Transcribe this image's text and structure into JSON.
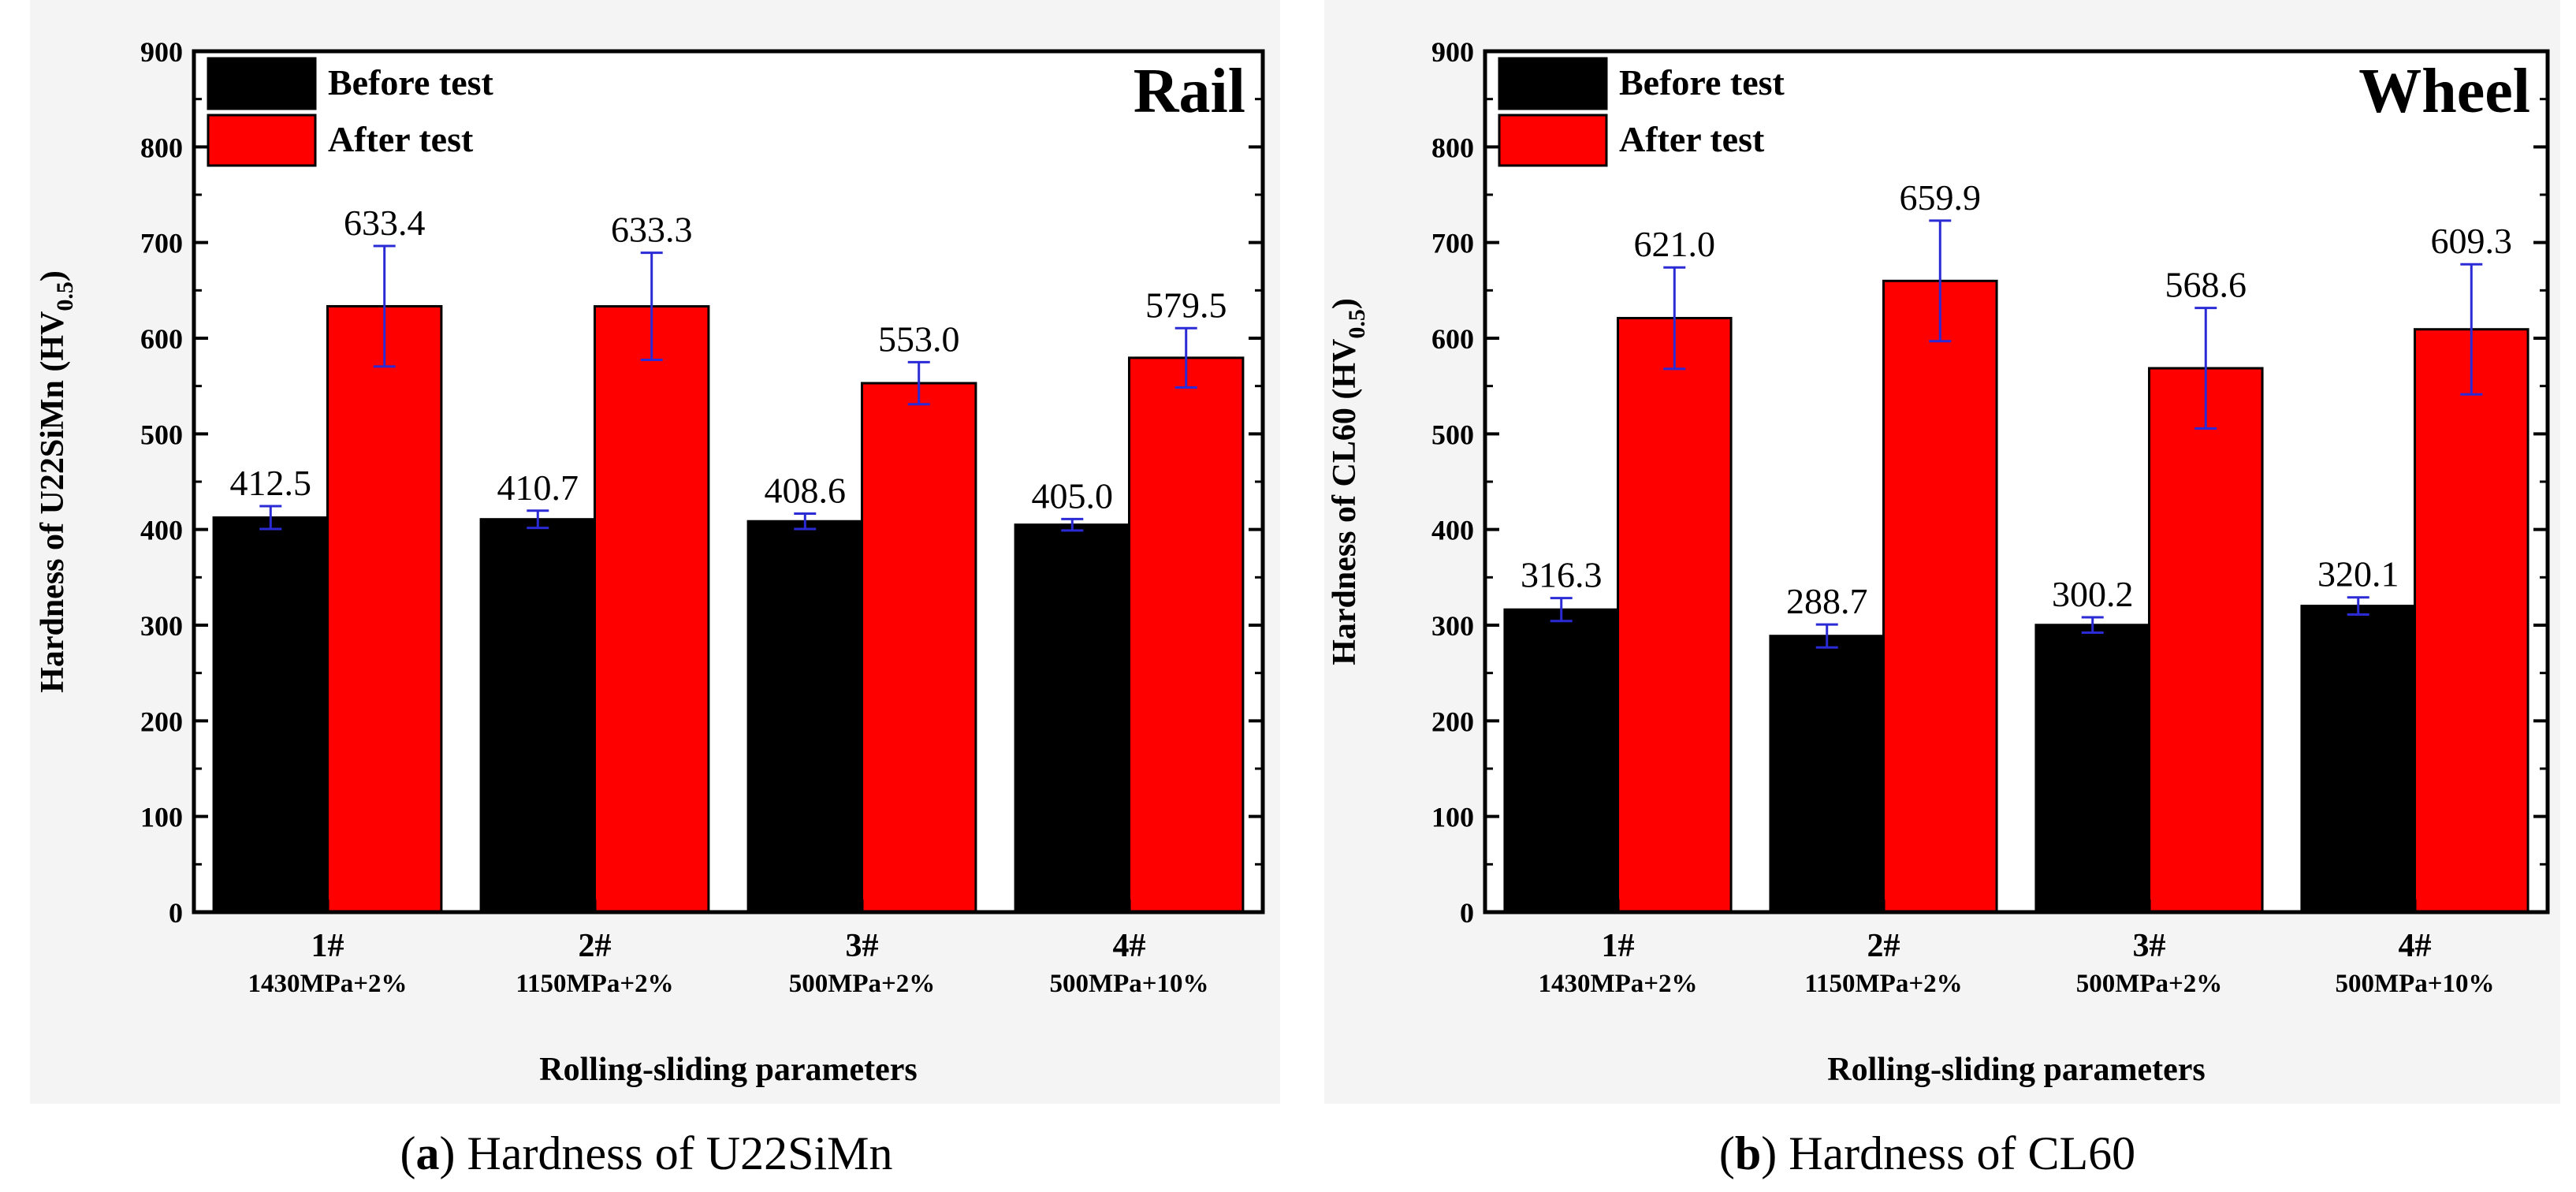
{
  "chart_data": [
    {
      "type": "bar",
      "panel_title": "Rail",
      "caption_letter": "a",
      "caption_text": " Hardness of U22SiMn",
      "ylabel_main": "Hardness of U22SiMn (HV",
      "ylabel_sub": "0.5",
      "ylabel_close": ")",
      "xlabel": "Rolling-sliding parameters",
      "ylim": [
        0,
        900
      ],
      "yticks": [
        0,
        100,
        200,
        300,
        400,
        500,
        600,
        700,
        800,
        900
      ],
      "categories": [
        "1#",
        "2#",
        "3#",
        "4#"
      ],
      "conditions": [
        "1430MPa+2%",
        "1150MPa+2%",
        "500MPa+2%",
        "500MPa+10%"
      ],
      "series": [
        {
          "name": "Before test",
          "color": "#000000",
          "values": [
            412.5,
            410.7,
            408.6,
            405.0
          ],
          "labels": [
            "412.5",
            "410.7",
            "408.6",
            "405.0"
          ],
          "errors": [
            12,
            9,
            8,
            6
          ]
        },
        {
          "name": "After test",
          "color": "#ff0000",
          "values": [
            633.4,
            633.3,
            553.0,
            579.5
          ],
          "labels": [
            "633.4",
            "633.3",
            "553.0",
            "579.5"
          ],
          "errors": [
            63,
            56,
            22,
            31
          ]
        }
      ]
    },
    {
      "type": "bar",
      "panel_title": "Wheel",
      "caption_letter": "b",
      "caption_text": " Hardness of CL60",
      "ylabel_main": "Hardness of CL60 (HV",
      "ylabel_sub": "0.5",
      "ylabel_close": ")",
      "xlabel": "Rolling-sliding parameters",
      "ylim": [
        0,
        900
      ],
      "yticks": [
        0,
        100,
        200,
        300,
        400,
        500,
        600,
        700,
        800,
        900
      ],
      "categories": [
        "1#",
        "2#",
        "3#",
        "4#"
      ],
      "conditions": [
        "1430MPa+2%",
        "1150MPa+2%",
        "500MPa+2%",
        "500MPa+10%"
      ],
      "series": [
        {
          "name": "Before test",
          "color": "#000000",
          "values": [
            316.3,
            288.7,
            300.2,
            320.1
          ],
          "labels": [
            "316.3",
            "288.7",
            "300.2",
            "320.1"
          ],
          "errors": [
            12,
            12,
            8,
            9
          ]
        },
        {
          "name": "After test",
          "color": "#ff0000",
          "values": [
            621.0,
            659.9,
            568.6,
            609.3
          ],
          "labels": [
            "621.0",
            "659.9",
            "568.6",
            "609.3"
          ],
          "errors": [
            53,
            63,
            63,
            68
          ]
        }
      ]
    }
  ]
}
